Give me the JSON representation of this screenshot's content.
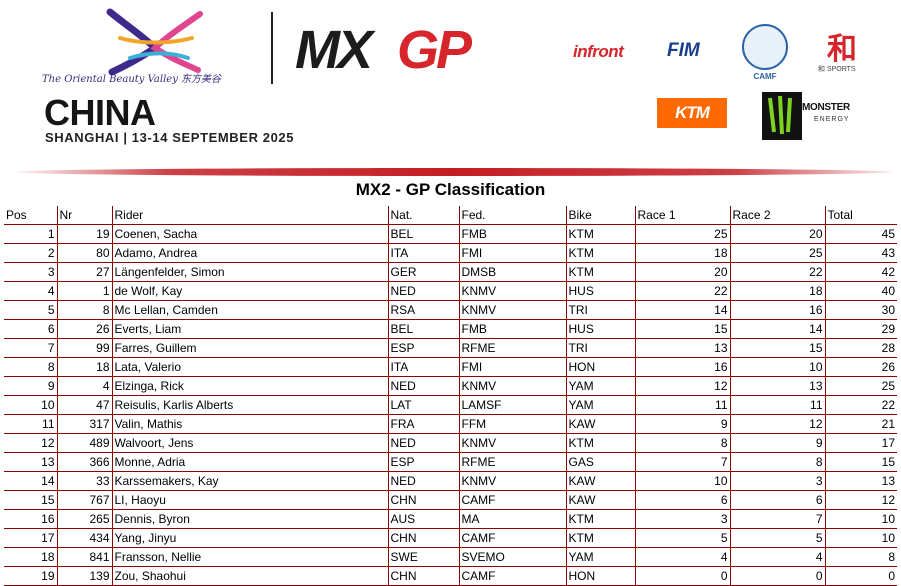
{
  "header": {
    "tagline": "The Oriental Beauty Valley 东方美谷",
    "event_country": "CHINA",
    "event_dates": "SHANGHAI | 13-14 SEPTEMBER 2025",
    "series_logo": "MXGP",
    "sponsors": [
      "infront",
      "FIM",
      "CAMF",
      "KTM",
      "MONSTER ENERGY"
    ],
    "camf_label": "CAMF",
    "he_sports_label": "和 SPORTS",
    "monster_label": "MONSTER",
    "energy_label": "ENERGY",
    "colors": {
      "brand_red": "#c41e24",
      "ktm_orange": "#ff6a00",
      "fim_blue": "#1a3f8a",
      "rule_color": "#8b0000"
    }
  },
  "title": "MX2 - GP Classification",
  "table": {
    "columns": [
      "Pos",
      "Nr",
      "Rider",
      "Nat.",
      "Fed.",
      "Bike",
      "Race 1",
      "Race 2",
      "Total"
    ],
    "rows": [
      [
        "1",
        "19",
        "Coenen, Sacha",
        "BEL",
        "FMB",
        "KTM",
        "25",
        "20",
        "45"
      ],
      [
        "2",
        "80",
        "Adamo, Andrea",
        "ITA",
        "FMI",
        "KTM",
        "18",
        "25",
        "43"
      ],
      [
        "3",
        "27",
        "Längenfelder, Simon",
        "GER",
        "DMSB",
        "KTM",
        "20",
        "22",
        "42"
      ],
      [
        "4",
        "1",
        "de Wolf, Kay",
        "NED",
        "KNMV",
        "HUS",
        "22",
        "18",
        "40"
      ],
      [
        "5",
        "8",
        "Mc Lellan, Camden",
        "RSA",
        "KNMV",
        "TRI",
        "14",
        "16",
        "30"
      ],
      [
        "6",
        "26",
        "Everts, Liam",
        "BEL",
        "FMB",
        "HUS",
        "15",
        "14",
        "29"
      ],
      [
        "7",
        "99",
        "Farres, Guillem",
        "ESP",
        "RFME",
        "TRI",
        "13",
        "15",
        "28"
      ],
      [
        "8",
        "18",
        "Lata, Valerio",
        "ITA",
        "FMI",
        "HON",
        "16",
        "10",
        "26"
      ],
      [
        "9",
        "4",
        "Elzinga, Rick",
        "NED",
        "KNMV",
        "YAM",
        "12",
        "13",
        "25"
      ],
      [
        "10",
        "47",
        "Reisulis, Karlis Alberts",
        "LAT",
        "LAMSF",
        "YAM",
        "11",
        "11",
        "22"
      ],
      [
        "11",
        "317",
        "Valin, Mathis",
        "FRA",
        "FFM",
        "KAW",
        "9",
        "12",
        "21"
      ],
      [
        "12",
        "489",
        "Walvoort, Jens",
        "NED",
        "KNMV",
        "KTM",
        "8",
        "9",
        "17"
      ],
      [
        "13",
        "366",
        "Monne, Adria",
        "ESP",
        "RFME",
        "GAS",
        "7",
        "8",
        "15"
      ],
      [
        "14",
        "33",
        "Karssemakers, Kay",
        "NED",
        "KNMV",
        "KAW",
        "10",
        "3",
        "13"
      ],
      [
        "15",
        "767",
        "LI, Haoyu",
        "CHN",
        "CAMF",
        "KAW",
        "6",
        "6",
        "12"
      ],
      [
        "16",
        "265",
        "Dennis, Byron",
        "AUS",
        "MA",
        "KTM",
        "3",
        "7",
        "10"
      ],
      [
        "17",
        "434",
        "Yang, Jinyu",
        "CHN",
        "CAMF",
        "KTM",
        "5",
        "5",
        "10"
      ],
      [
        "18",
        "841",
        "Fransson, Nellie",
        "SWE",
        "SVEMO",
        "YAM",
        "4",
        "4",
        "8"
      ],
      [
        "19",
        "139",
        "Zou, Shaohui",
        "CHN",
        "CAMF",
        "HON",
        "0",
        "0",
        "0"
      ]
    ]
  }
}
